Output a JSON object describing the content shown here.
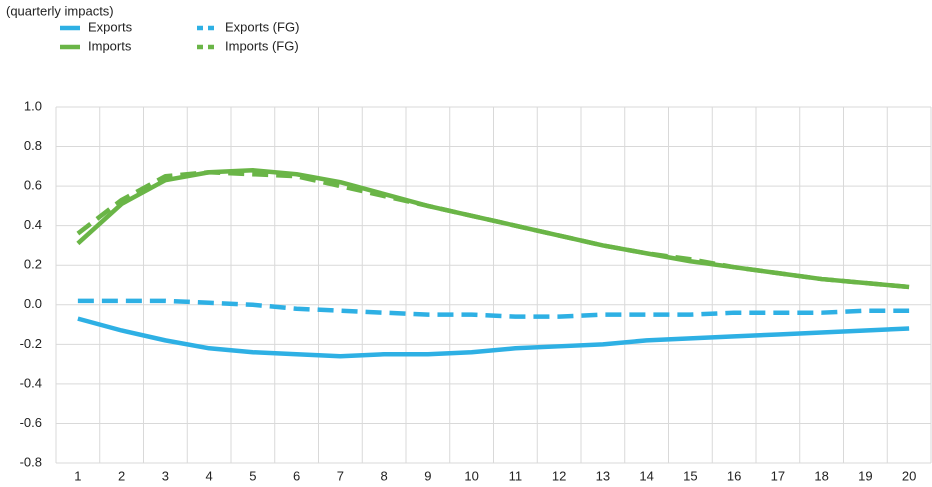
{
  "chart_data": {
    "type": "line",
    "subtitle": "(quarterly impacts)",
    "categories": [
      "1",
      "2",
      "3",
      "4",
      "5",
      "6",
      "7",
      "8",
      "9",
      "10",
      "11",
      "12",
      "13",
      "14",
      "15",
      "16",
      "17",
      "18",
      "19",
      "20"
    ],
    "series": [
      {
        "name": "Exports",
        "color": "#2eb0e4",
        "style": "solid",
        "values": [
          -0.07,
          -0.13,
          -0.18,
          -0.22,
          -0.24,
          -0.25,
          -0.26,
          -0.25,
          -0.25,
          -0.24,
          -0.22,
          -0.21,
          -0.2,
          -0.18,
          -0.17,
          -0.16,
          -0.15,
          -0.14,
          -0.13,
          -0.12
        ]
      },
      {
        "name": "Imports",
        "color": "#6ab547",
        "style": "solid",
        "values": [
          0.31,
          0.51,
          0.63,
          0.67,
          0.68,
          0.66,
          0.62,
          0.56,
          0.5,
          0.45,
          0.4,
          0.35,
          0.3,
          0.26,
          0.22,
          0.19,
          0.16,
          0.13,
          0.11,
          0.09
        ]
      },
      {
        "name": "Exports (FG)",
        "color": "#2eb0e4",
        "style": "dashed",
        "values": [
          0.02,
          0.02,
          0.02,
          0.01,
          0.0,
          -0.02,
          -0.03,
          -0.04,
          -0.05,
          -0.05,
          -0.06,
          -0.06,
          -0.05,
          -0.05,
          -0.05,
          -0.04,
          -0.04,
          -0.04,
          -0.03,
          -0.03
        ]
      },
      {
        "name": "Imports (FG)",
        "color": "#6ab547",
        "style": "dashed",
        "values": [
          0.36,
          0.53,
          0.65,
          0.67,
          0.66,
          0.65,
          0.6,
          0.55,
          0.5,
          0.45,
          0.4,
          0.35,
          0.3,
          0.26,
          0.23,
          0.19,
          0.16,
          0.13,
          0.11,
          0.09
        ]
      }
    ],
    "ylim": [
      -0.8,
      1.0
    ],
    "yticks": [
      {
        "value": -0.8,
        "label": "-0.8"
      },
      {
        "value": -0.6,
        "label": "-0.6"
      },
      {
        "value": -0.4,
        "label": "-0.4"
      },
      {
        "value": -0.2,
        "label": "-0.2"
      },
      {
        "value": 0,
        "label": "0.0"
      },
      0.2,
      0.4,
      0.6,
      0.8,
      {
        "value": 1,
        "label": "1.0"
      }
    ],
    "grid": true
  }
}
